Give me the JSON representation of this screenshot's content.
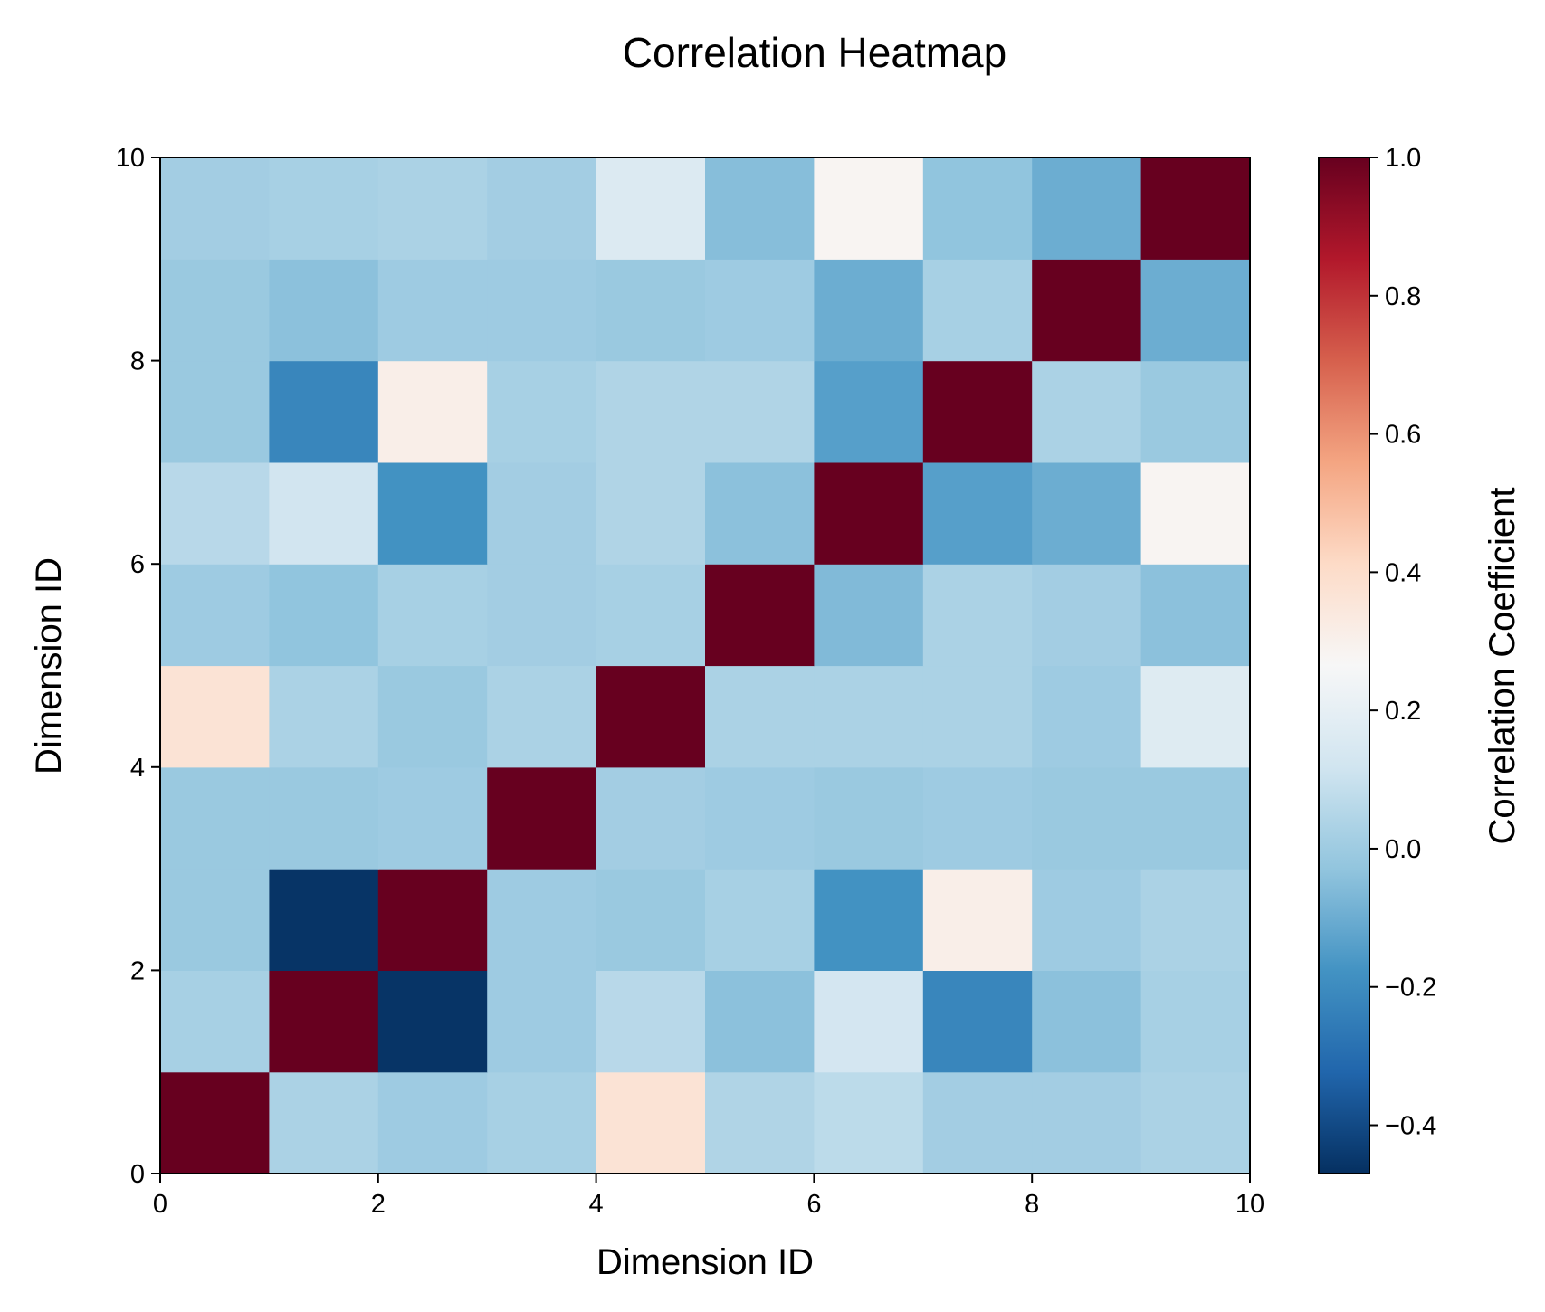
{
  "chart_data": {
    "type": "heatmap",
    "title": "Correlation Heatmap",
    "xlabel": "Dimension ID",
    "ylabel": "Dimension ID",
    "xlim": [
      0,
      10
    ],
    "ylim": [
      0,
      10
    ],
    "x_ticks": [
      "0",
      "2",
      "4",
      "6",
      "8",
      "10"
    ],
    "y_ticks": [
      "0",
      "2",
      "4",
      "6",
      "8",
      "10"
    ],
    "colorbar": {
      "label": "Correlation Coefficient",
      "min": -0.47,
      "max": 1.0,
      "ticks": [
        "−0.4",
        "−0.2",
        "0.0",
        "0.2",
        "0.4",
        "0.6",
        "0.8",
        "1.0"
      ],
      "tick_values": [
        -0.4,
        -0.2,
        0.0,
        0.2,
        0.4,
        0.6,
        0.8,
        1.0
      ],
      "colormap": "RdBu_r"
    },
    "values": [
      [
        1.0,
        0.03,
        0.0,
        0.02,
        0.37,
        0.04,
        0.07,
        0.01,
        0.01,
        0.03
      ],
      [
        0.02,
        1.0,
        -0.46,
        0.0,
        0.06,
        -0.04,
        0.13,
        -0.22,
        -0.04,
        0.02
      ],
      [
        -0.01,
        -0.46,
        1.0,
        0.0,
        -0.01,
        0.02,
        -0.18,
        0.31,
        0.0,
        0.03
      ],
      [
        -0.01,
        -0.01,
        0.0,
        1.0,
        0.01,
        0.0,
        -0.01,
        0.0,
        -0.01,
        -0.01
      ],
      [
        0.37,
        0.03,
        -0.01,
        0.03,
        1.0,
        0.03,
        0.03,
        0.03,
        0.0,
        0.17
      ],
      [
        0.0,
        -0.03,
        0.02,
        0.01,
        0.02,
        1.0,
        -0.06,
        0.03,
        0.01,
        -0.04
      ],
      [
        0.06,
        0.12,
        -0.18,
        0.01,
        0.04,
        -0.04,
        1.0,
        -0.14,
        -0.1,
        0.28
      ],
      [
        -0.01,
        -0.22,
        0.31,
        0.02,
        0.04,
        0.04,
        -0.14,
        1.0,
        0.03,
        -0.01
      ],
      [
        -0.01,
        -0.04,
        0.0,
        0.0,
        -0.01,
        0.0,
        -0.1,
        0.02,
        1.0,
        -0.1
      ],
      [
        0.01,
        0.02,
        0.03,
        0.01,
        0.16,
        -0.05,
        0.28,
        -0.03,
        -0.1,
        1.0
      ]
    ]
  }
}
